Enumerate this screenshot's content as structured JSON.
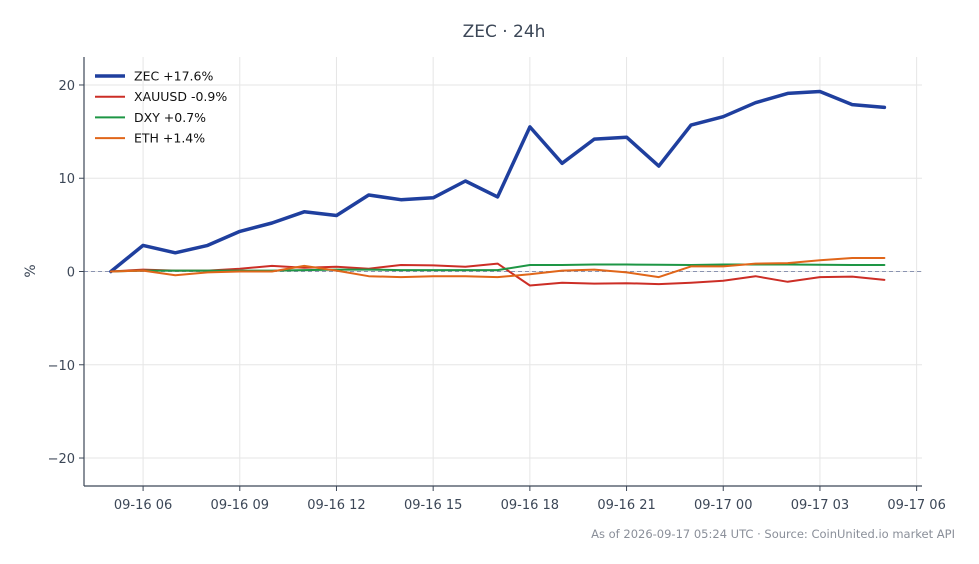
{
  "chart_data": {
    "type": "line",
    "title": "ZEC · 24h",
    "ylabel": "%",
    "xlabel": "",
    "ylim": [
      -23,
      23
    ],
    "xlim": [
      "09-16 04:10",
      "09-17 06:10"
    ],
    "yticks": [
      -20,
      -10,
      0,
      10,
      20
    ],
    "ytick_labels": [
      "−20",
      "−10",
      "0",
      "10",
      "20"
    ],
    "xticks": [
      "09-16 06:00",
      "09-16 09:00",
      "09-16 12:00",
      "09-16 15:00",
      "09-16 18:00",
      "09-16 21:00",
      "09-17 00:00",
      "09-17 03:00",
      "09-17 06:00"
    ],
    "xtick_labels": [
      "09-16 06",
      "09-16 09",
      "09-16 12",
      "09-16 15",
      "09-16 18",
      "09-16 21",
      "09-17 00",
      "09-17 03",
      "09-17 06"
    ],
    "grid": true,
    "legend_position": "top-left",
    "zero_line": true,
    "x": [
      "09-16 05:00",
      "09-16 06:00",
      "09-16 07:00",
      "09-16 08:00",
      "09-16 09:00",
      "09-16 10:00",
      "09-16 11:00",
      "09-16 12:00",
      "09-16 13:00",
      "09-16 14:00",
      "09-16 15:00",
      "09-16 16:00",
      "09-16 17:00",
      "09-16 18:00",
      "09-16 19:00",
      "09-16 20:00",
      "09-16 21:00",
      "09-16 22:00",
      "09-16 23:00",
      "09-17 00:00",
      "09-17 01:00",
      "09-17 02:00",
      "09-17 03:00",
      "09-17 04:00",
      "09-17 05:00"
    ],
    "series": [
      {
        "name": "ZEC +17.6%",
        "color": "#1f3f9e",
        "width": 3.5,
        "values": [
          0,
          2.8,
          2.0,
          2.8,
          4.3,
          5.2,
          6.4,
          6.0,
          8.2,
          7.7,
          7.9,
          9.7,
          8.0,
          15.5,
          11.6,
          14.2,
          14.4,
          11.3,
          15.7,
          16.6,
          18.1,
          19.1,
          19.3,
          17.9,
          17.6
        ]
      },
      {
        "name": "XAUUSD -0.9%",
        "color": "#cc2e26",
        "width": 2,
        "values": [
          0,
          0.2,
          0.1,
          0.1,
          0.3,
          0.6,
          0.4,
          0.5,
          0.3,
          0.7,
          0.65,
          0.5,
          0.85,
          -1.5,
          -1.2,
          -1.3,
          -1.25,
          -1.35,
          -1.2,
          -1.0,
          -0.5,
          -1.1,
          -0.6,
          -0.55,
          -0.9
        ]
      },
      {
        "name": "DXY +0.7%",
        "color": "#1e9645",
        "width": 2,
        "values": [
          0,
          0.1,
          0.1,
          0.1,
          0.1,
          0.1,
          0.15,
          0.2,
          0.2,
          0.15,
          0.15,
          0.15,
          0.15,
          0.7,
          0.7,
          0.75,
          0.75,
          0.72,
          0.7,
          0.75,
          0.75,
          0.75,
          0.72,
          0.7,
          0.7
        ]
      },
      {
        "name": "ETH +1.4%",
        "color": "#e0661a",
        "width": 2,
        "values": [
          0,
          0.1,
          -0.4,
          -0.1,
          0.0,
          0.0,
          0.6,
          0.1,
          -0.5,
          -0.6,
          -0.5,
          -0.5,
          -0.6,
          -0.3,
          0.1,
          0.2,
          -0.1,
          -0.6,
          0.55,
          0.55,
          0.85,
          0.9,
          1.2,
          1.45,
          1.45
        ]
      }
    ]
  },
  "footer": "As of 2026-09-17 05:24 UTC · Source: CoinUnited.io market API",
  "colors": {
    "axis": "#3c4757",
    "grid": "#e6e6e6",
    "zero_line": "#8a93b0"
  }
}
